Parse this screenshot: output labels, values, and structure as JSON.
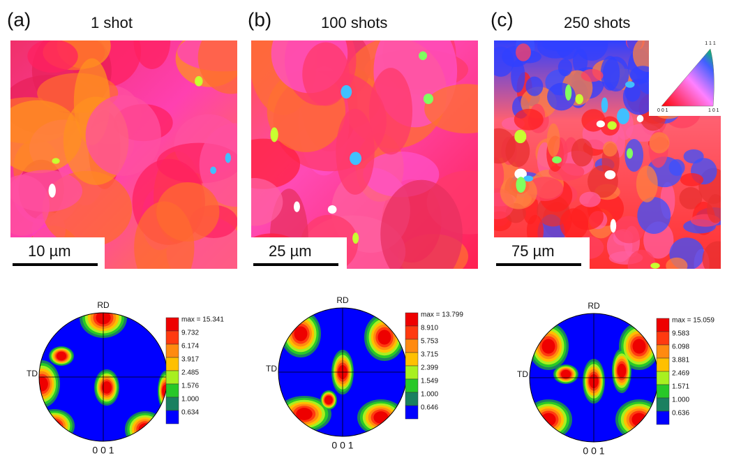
{
  "panels": [
    {
      "label": "(a)",
      "title": "1 shot",
      "scale_bar": "10 µm"
    },
    {
      "label": "(b)",
      "title": "100 shots",
      "scale_bar": "25 µm"
    },
    {
      "label": "(c)",
      "title": "250 shots",
      "scale_bar": "75 µm"
    }
  ],
  "ipf_key": {
    "top": "1 1 1",
    "left": "0 0 1",
    "right": "1 0 1"
  },
  "pole_figures": [
    {
      "rd": "RD",
      "td": "TD",
      "plane": "0 0 1",
      "legend": [
        "max = 15.341",
        "9.732",
        "6.174",
        "3.917",
        "2.485",
        "1.576",
        "1.000",
        "0.634"
      ]
    },
    {
      "rd": "RD",
      "td": "TD",
      "plane": "0 0 1",
      "legend": [
        "max = 13.799",
        "8.910",
        "5.753",
        "3.715",
        "2.399",
        "1.549",
        "1.000",
        "0.646"
      ]
    },
    {
      "rd": "RD",
      "td": "TD",
      "plane": "0 0 1",
      "legend": [
        "max = 15.059",
        "9.583",
        "6.098",
        "3.881",
        "2.469",
        "1.571",
        "1.000",
        "0.636"
      ]
    }
  ]
}
